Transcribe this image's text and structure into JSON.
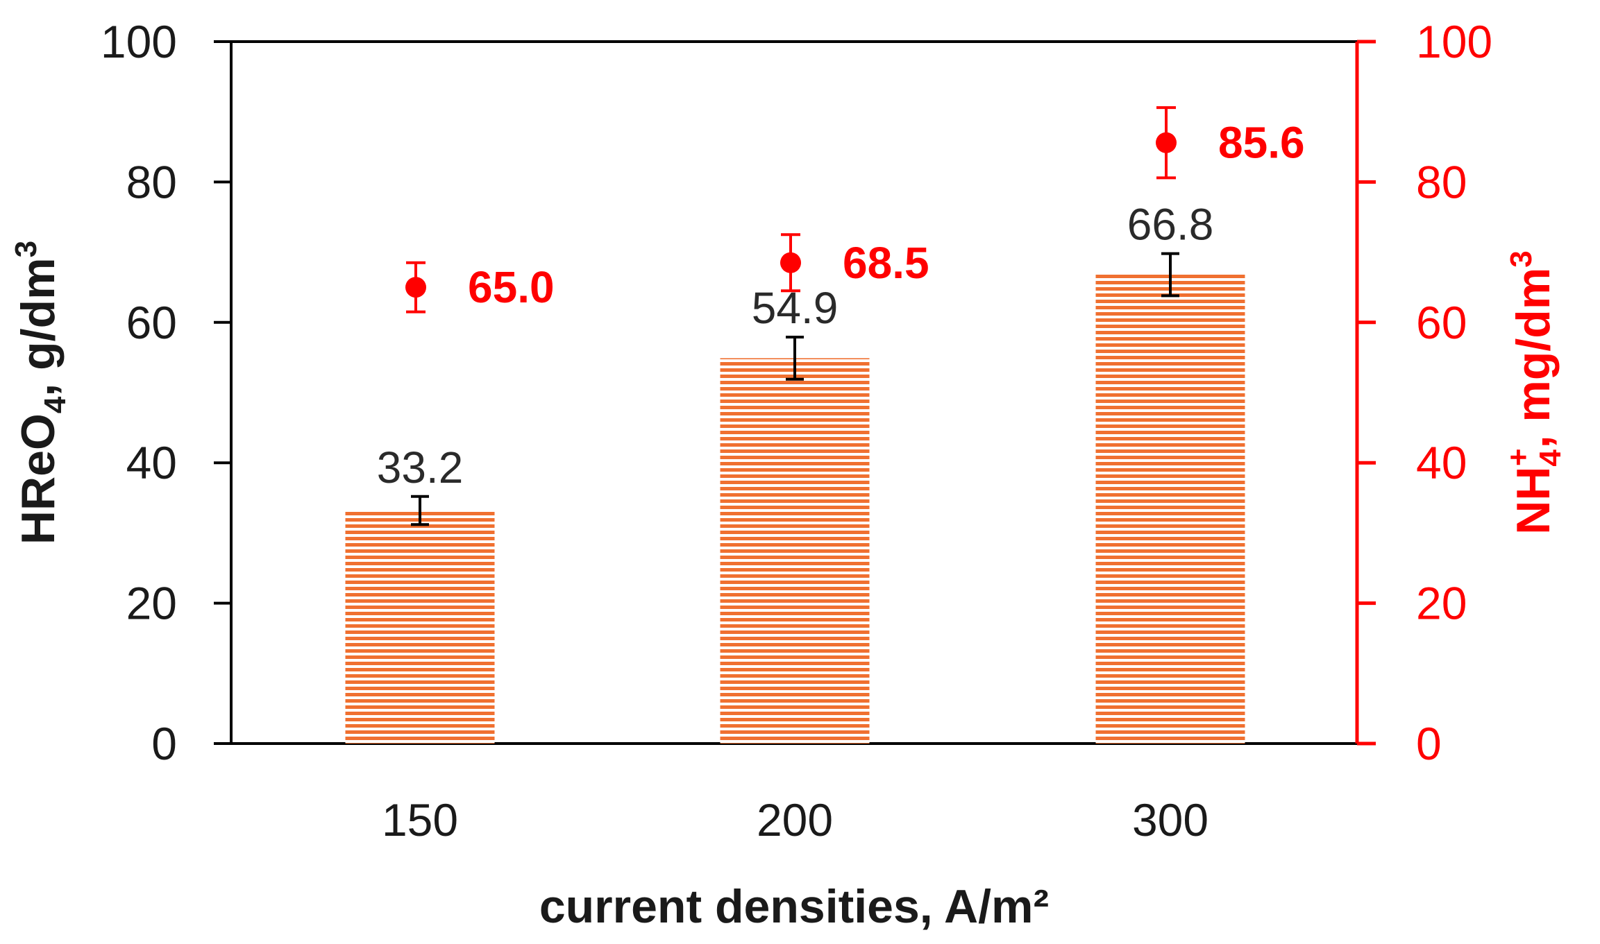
{
  "chart_data": {
    "type": "bar",
    "categories": [
      "150",
      "200",
      "300"
    ],
    "xlabel": "current densities, A/m²",
    "ylabel_left": {
      "main": "HReO",
      "sub": "4",
      "rest": ", g/dm",
      "sup": "3"
    },
    "ylabel_right": {
      "main": "NH",
      "sub": "4",
      "sup1": "+",
      "rest": ", mg/dm",
      "sup": "3"
    },
    "ylim_left": [
      0,
      100
    ],
    "ylim_right": [
      0,
      100
    ],
    "yticks": [
      0,
      20,
      40,
      60,
      80,
      100
    ],
    "grid": false,
    "series": [
      {
        "axis": "left",
        "kind": "bar",
        "values": [
          33.2,
          54.9,
          66.8
        ],
        "labels": [
          "33.2",
          "54.9",
          "66.8"
        ],
        "error": [
          2.0,
          3.0,
          3.0
        ],
        "color": "#f07030"
      },
      {
        "axis": "right",
        "kind": "scatter",
        "values": [
          65.0,
          68.5,
          85.6
        ],
        "labels": [
          "65.0",
          "68.5",
          "85.6"
        ],
        "error": [
          3.5,
          4.0,
          5.0
        ],
        "color": "#ff0000"
      }
    ]
  }
}
